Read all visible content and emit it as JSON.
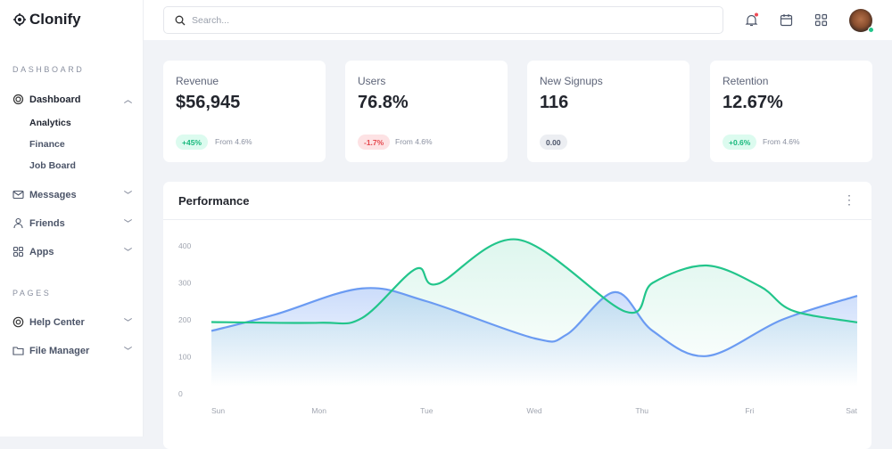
{
  "app": {
    "name": "Clonify"
  },
  "sidebar": {
    "sections": [
      {
        "label": "DASHBOARD"
      },
      {
        "label": "PAGES"
      }
    ],
    "dashboard": {
      "label": "Dashboard",
      "children": [
        "Analytics",
        "Finance",
        "Job Board"
      ]
    },
    "items": [
      {
        "label": "Messages",
        "icon": "mail-icon"
      },
      {
        "label": "Friends",
        "icon": "user-icon"
      },
      {
        "label": "Apps",
        "icon": "grid-icon"
      },
      {
        "label": "Help Center",
        "icon": "lifebuoy-icon"
      },
      {
        "label": "File Manager",
        "icon": "folder-icon"
      }
    ]
  },
  "header": {
    "search_placeholder": "Search...",
    "notification_dot": true
  },
  "stats": [
    {
      "label": "Revenue",
      "value": "$56,945",
      "badge": "+45%",
      "badge_type": "up",
      "note": "From 4.6%"
    },
    {
      "label": "Users",
      "value": "76.8%",
      "badge": "-1.7%",
      "badge_type": "down",
      "note": "From 4.6%"
    },
    {
      "label": "New Signups",
      "value": "116",
      "badge": "0.00",
      "badge_type": "neutral",
      "note": ""
    },
    {
      "label": "Retention",
      "value": "12.67%",
      "badge": "+0.6%",
      "badge_type": "up",
      "note": "From 4.6%"
    }
  ],
  "colors": {
    "up_bg": "#dcfbef",
    "up_fg": "#19b97d",
    "down_bg": "#fde2e4",
    "down_fg": "#e5484d",
    "neutral_bg": "#eceef2",
    "neutral_fg": "#4b5468",
    "blue": "#6b9bf2",
    "green": "#22c58b"
  },
  "performance": {
    "title": "Performance"
  },
  "chart_data": {
    "type": "area",
    "categories": [
      "Sun",
      "Mon",
      "Tue",
      "Wed",
      "Thu",
      "Fri",
      "Sat"
    ],
    "yticks": [
      0,
      100,
      200,
      300,
      400
    ],
    "ylim": [
      0,
      400
    ],
    "grid": false,
    "series": [
      {
        "color": "#6b9bf2",
        "points": [
          [
            0,
            170
          ],
          [
            0.6,
            215
          ],
          [
            1.4,
            285
          ],
          [
            2,
            250
          ],
          [
            3,
            150
          ],
          [
            3.3,
            160
          ],
          [
            3.75,
            275
          ],
          [
            4.1,
            170
          ],
          [
            4.6,
            102
          ],
          [
            5.3,
            200
          ],
          [
            6,
            265
          ]
        ]
      },
      {
        "color": "#22c58b",
        "points": [
          [
            0,
            194
          ],
          [
            1,
            192
          ],
          [
            1.4,
            205
          ],
          [
            1.9,
            338
          ],
          [
            2.1,
            297
          ],
          [
            2.85,
            417
          ],
          [
            3.85,
            222
          ],
          [
            4.1,
            300
          ],
          [
            4.6,
            347
          ],
          [
            5.1,
            290
          ],
          [
            5.4,
            225
          ],
          [
            6,
            193
          ]
        ]
      }
    ]
  }
}
